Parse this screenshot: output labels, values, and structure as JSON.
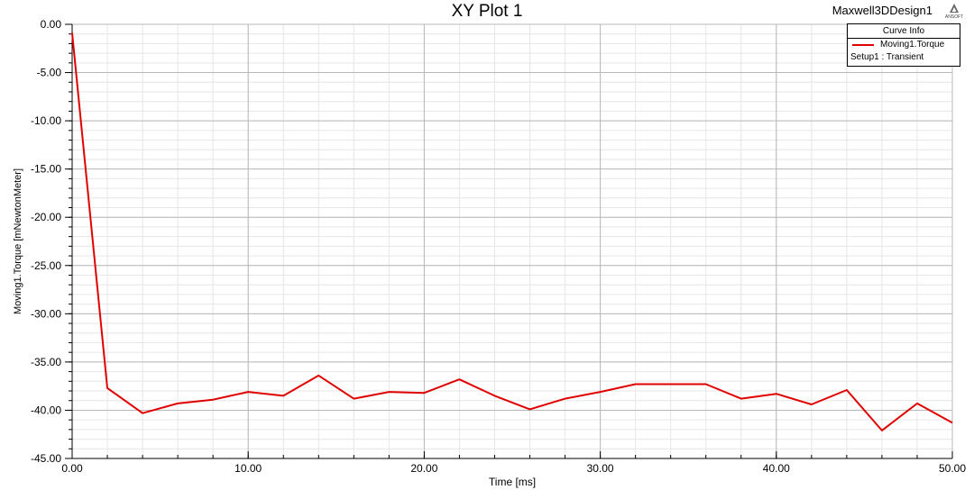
{
  "window": {
    "plot_title": "XY Plot 1",
    "design_name": "Maxwell3DDesign1",
    "logo_text": "ANSOFT"
  },
  "legend": {
    "header": "Curve Info",
    "entries": [
      {
        "name": "Moving1.Torque",
        "subtitle": "Setup1 : Transient",
        "color": "#e00000"
      }
    ]
  },
  "chart_data": {
    "type": "line",
    "title": "XY Plot 1",
    "xlabel": "Time [ms]",
    "ylabel": "Moving1.Torque [mNewtonMeter]",
    "xlim": [
      0,
      50
    ],
    "ylim": [
      -45,
      0
    ],
    "xticks": [
      "0.00",
      "10.00",
      "20.00",
      "30.00",
      "40.00",
      "50.00"
    ],
    "yticks": [
      "0.00",
      "-5.00",
      "-10.00",
      "-15.00",
      "-20.00",
      "-25.00",
      "-30.00",
      "-35.00",
      "-40.00",
      "-45.00"
    ],
    "grid": true,
    "legend_position": "top-right",
    "series": [
      {
        "name": "Moving1.Torque",
        "color": "#e00000",
        "x": [
          0,
          2,
          4,
          6,
          8,
          10,
          12,
          14,
          16,
          18,
          20,
          22,
          24,
          26,
          28,
          30,
          32,
          34,
          36,
          38,
          40,
          42,
          44,
          46,
          48,
          50
        ],
        "y": [
          -0.9,
          -37.7,
          -40.3,
          -39.3,
          -38.9,
          -38.1,
          -38.5,
          -36.4,
          -38.8,
          -38.1,
          -38.2,
          -36.8,
          -38.5,
          -39.9,
          -38.8,
          -38.1,
          -37.3,
          -37.3,
          -37.3,
          -38.8,
          -38.3,
          -39.4,
          -37.9,
          -42.1,
          -39.3,
          -41.3
        ]
      }
    ]
  }
}
